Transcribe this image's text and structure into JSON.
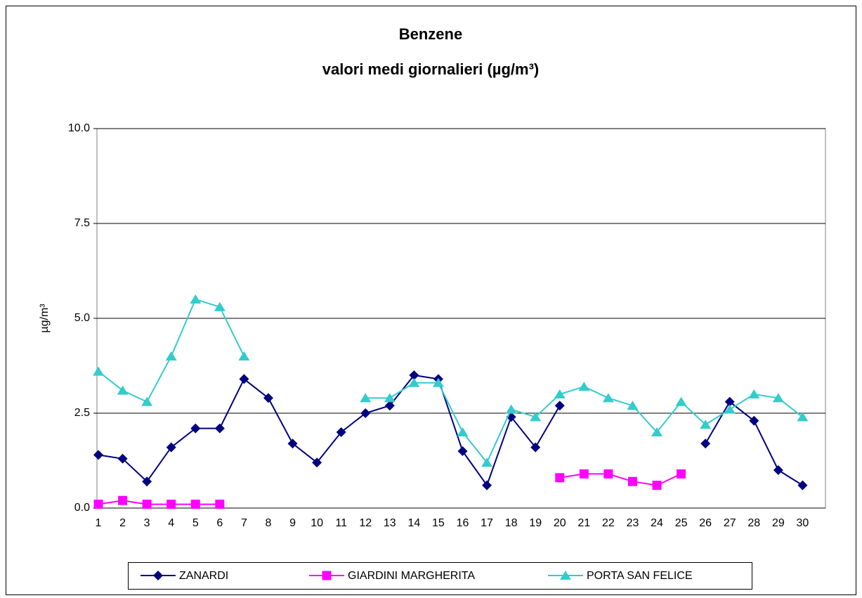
{
  "chart_data": {
    "type": "line",
    "title": "Benzene",
    "subtitle": "valori medi giornalieri (µg/m³)",
    "y_label": "µg/m³",
    "categories": [
      "1",
      "2",
      "3",
      "4",
      "5",
      "6",
      "7",
      "8",
      "9",
      "10",
      "11",
      "12",
      "13",
      "14",
      "15",
      "16",
      "17",
      "18",
      "19",
      "20",
      "21",
      "22",
      "23",
      "24",
      "25",
      "26",
      "27",
      "28",
      "29",
      "30"
    ],
    "series": [
      {
        "name": "ZANARDI",
        "color": "#000080",
        "marker": "diamond",
        "values": [
          1.4,
          1.3,
          0.7,
          1.6,
          2.1,
          2.1,
          3.4,
          2.9,
          1.7,
          1.2,
          2.0,
          2.5,
          2.7,
          3.5,
          3.4,
          1.5,
          0.6,
          2.4,
          1.6,
          2.7,
          null,
          null,
          null,
          null,
          null,
          1.7,
          2.8,
          2.3,
          1.0,
          0.6
        ]
      },
      {
        "name": "GIARDINI MARGHERITA",
        "color": "#ff00ff",
        "marker": "square",
        "values": [
          0.1,
          0.2,
          0.1,
          0.1,
          0.1,
          0.1,
          null,
          null,
          null,
          null,
          null,
          null,
          null,
          null,
          null,
          null,
          null,
          null,
          null,
          0.8,
          0.9,
          0.9,
          0.7,
          0.6,
          0.9,
          null,
          null,
          null,
          null,
          null
        ]
      },
      {
        "name": "PORTA SAN FELICE",
        "color": "#33cccc",
        "marker": "triangle",
        "values": [
          3.6,
          3.1,
          2.8,
          4.0,
          5.5,
          5.3,
          4.0,
          null,
          null,
          null,
          null,
          2.9,
          2.9,
          3.3,
          3.3,
          2.0,
          1.2,
          2.6,
          2.4,
          3.0,
          3.2,
          2.9,
          2.7,
          2.0,
          2.8,
          2.2,
          2.6,
          3.0,
          2.9,
          2.4
        ]
      }
    ],
    "ylim": [
      0,
      10
    ],
    "yticks": [
      {
        "value": 0,
        "label": "0.0"
      },
      2.5,
      {
        "value": 5,
        "label": "5.0"
      },
      7.5,
      {
        "value": 10,
        "label": "10.0"
      }
    ],
    "grid": true,
    "legend": "bottom"
  }
}
